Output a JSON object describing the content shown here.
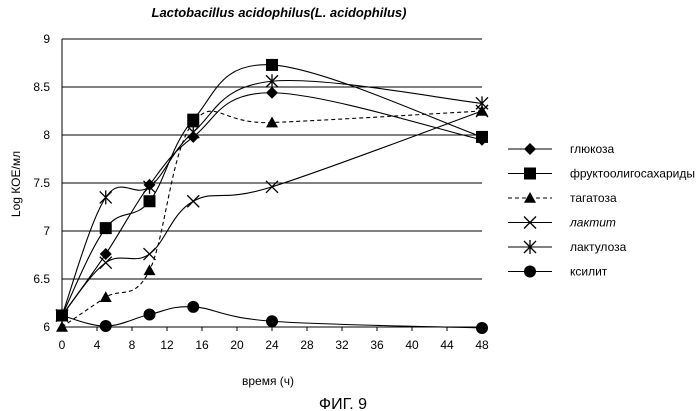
{
  "chart_data": {
    "type": "line",
    "title": "Lactobacillus acidophilus(L. acidophilus)",
    "xlabel": "время (ч)",
    "ylabel": "Log КОЕ/мл",
    "caption": "ФИГ. 9",
    "ylim": [
      6,
      9
    ],
    "yticks": [
      "6",
      "6.5",
      "7",
      "7.5",
      "8",
      "8.5",
      "9"
    ],
    "xticks": [
      "0",
      "4",
      "8",
      "12",
      "16",
      "20",
      "24",
      "28",
      "32",
      "36",
      "40",
      "44",
      "48"
    ],
    "grid": "horizontal",
    "legend_position": "right",
    "series": [
      {
        "name": "глюкоза",
        "marker": "diamond",
        "dash": false,
        "color": "#000000",
        "x": [
          0,
          5,
          10,
          15,
          24,
          48
        ],
        "values": [
          6.12,
          6.76,
          7.48,
          7.98,
          8.44,
          7.95
        ]
      },
      {
        "name": "фруктоолигосахариды",
        "marker": "square",
        "dash": false,
        "color": "#000000",
        "x": [
          0,
          5,
          10,
          15,
          24,
          48
        ],
        "values": [
          6.12,
          7.03,
          7.31,
          8.16,
          8.73,
          7.98
        ]
      },
      {
        "name": "тагатоза",
        "marker": "triangle",
        "dash": true,
        "color": "#000000",
        "x": [
          0,
          5,
          10,
          15,
          24,
          48
        ],
        "values": [
          6.0,
          6.31,
          6.59,
          8.13,
          8.13,
          8.25
        ]
      },
      {
        "name": "лактит",
        "marker": "x",
        "dash": false,
        "italic": true,
        "color": "#000000",
        "x": [
          0,
          5,
          10,
          15,
          24,
          48
        ],
        "values": [
          6.12,
          6.67,
          6.76,
          7.31,
          7.46,
          8.25
        ]
      },
      {
        "name": "лактулоза",
        "marker": "asterisk",
        "dash": false,
        "color": "#000000",
        "x": [
          0,
          5,
          10,
          15,
          24,
          48
        ],
        "values": [
          6.12,
          7.35,
          7.46,
          8.03,
          8.56,
          8.33
        ]
      },
      {
        "name": "ксилит",
        "marker": "circle",
        "dash": false,
        "color": "#000000",
        "x": [
          0,
          5,
          10,
          15,
          24,
          48
        ],
        "values": [
          6.12,
          6.01,
          6.13,
          6.21,
          6.06,
          5.99
        ]
      }
    ]
  }
}
